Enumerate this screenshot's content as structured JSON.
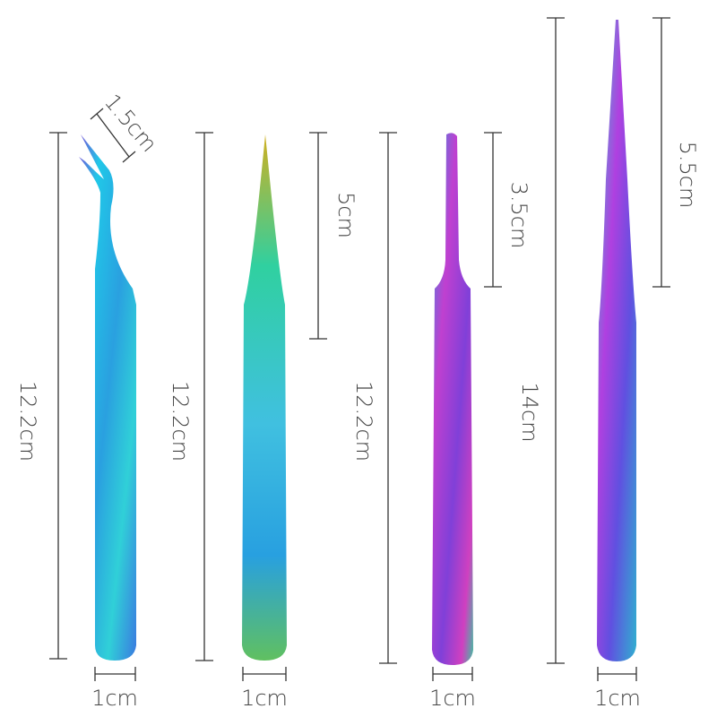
{
  "tweezers": [
    {
      "length_label": "12.2cm",
      "tip_label": "1.5cm",
      "width_label": "1cm"
    },
    {
      "length_label": "12.2cm",
      "tip_label": "5cm",
      "width_label": "1cm"
    },
    {
      "length_label": "12.2cm",
      "tip_label": "3.5cm",
      "width_label": "1cm"
    },
    {
      "length_label": "14cm",
      "tip_label": "5.5cm",
      "width_label": "1cm"
    }
  ]
}
